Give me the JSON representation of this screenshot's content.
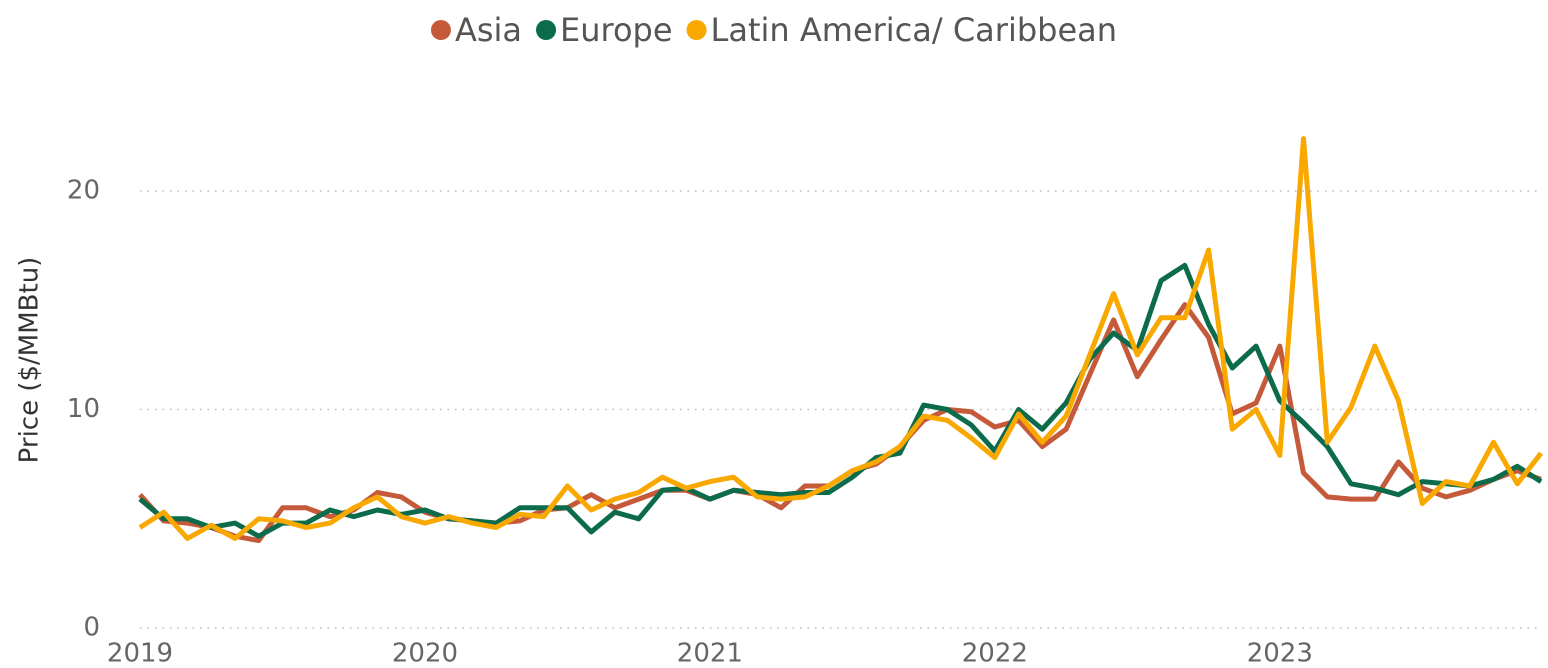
{
  "chart_data": {
    "type": "line",
    "y_label": "Price ($/MMBtu)",
    "x": [
      "2019-01",
      "2019-02",
      "2019-03",
      "2019-04",
      "2019-05",
      "2019-06",
      "2019-07",
      "2019-08",
      "2019-09",
      "2019-10",
      "2019-11",
      "2019-12",
      "2020-01",
      "2020-02",
      "2020-03",
      "2020-04",
      "2020-05",
      "2020-06",
      "2020-07",
      "2020-08",
      "2020-09",
      "2020-10",
      "2020-11",
      "2020-12",
      "2021-01",
      "2021-02",
      "2021-03",
      "2021-04",
      "2021-05",
      "2021-06",
      "2021-07",
      "2021-08",
      "2021-09",
      "2021-10",
      "2021-11",
      "2021-12",
      "2022-01",
      "2022-02",
      "2022-03",
      "2022-04",
      "2022-05",
      "2022-06",
      "2022-07",
      "2022-08",
      "2022-09",
      "2022-10",
      "2022-11",
      "2022-12",
      "2023-01",
      "2023-02",
      "2023-03",
      "2023-04",
      "2023-05",
      "2023-06",
      "2023-07",
      "2023-08",
      "2023-09",
      "2023-10",
      "2023-11",
      "2023-12"
    ],
    "series": [
      {
        "name": "Asia",
        "color": "#c55a3b",
        "values": [
          6.1,
          4.9,
          4.8,
          4.6,
          4.2,
          4.0,
          5.5,
          5.5,
          5.1,
          5.4,
          6.2,
          6.0,
          5.3,
          5.0,
          4.9,
          4.8,
          4.9,
          5.4,
          5.5,
          6.1,
          5.5,
          5.9,
          6.3,
          6.3,
          5.9,
          6.3,
          6.1,
          5.5,
          6.5,
          6.5,
          7.2,
          7.5,
          8.3,
          9.5,
          10.0,
          9.9,
          9.2,
          9.5,
          8.3,
          9.1,
          11.6,
          14.1,
          11.5,
          13.2,
          14.8,
          13.3,
          9.8,
          10.3,
          12.9,
          7.1,
          6.0,
          5.9,
          5.9,
          7.6,
          6.4,
          6.0,
          6.3,
          6.8,
          7.2,
          6.8
        ]
      },
      {
        "name": "Europe",
        "color": "#0b6b4b",
        "values": [
          5.9,
          5.0,
          5.0,
          4.6,
          4.8,
          4.2,
          4.8,
          4.8,
          5.4,
          5.1,
          5.4,
          5.2,
          5.4,
          5.0,
          4.9,
          4.8,
          5.5,
          5.5,
          5.5,
          4.4,
          5.3,
          5.0,
          6.3,
          6.4,
          5.9,
          6.3,
          6.2,
          6.1,
          6.2,
          6.2,
          6.9,
          7.8,
          8.0,
          10.2,
          10.0,
          9.3,
          8.1,
          10.0,
          9.1,
          10.3,
          12.3,
          13.5,
          12.7,
          15.9,
          16.6,
          13.9,
          11.9,
          12.9,
          10.4,
          9.4,
          8.3,
          6.6,
          6.4,
          6.1,
          6.7,
          6.6,
          6.5,
          6.8,
          7.4,
          6.7
        ]
      },
      {
        "name": "Latin America/ Caribbean",
        "color": "#f9a800",
        "values": [
          4.6,
          5.3,
          4.1,
          4.7,
          4.1,
          5.0,
          4.9,
          4.6,
          4.8,
          5.5,
          6.0,
          5.1,
          4.8,
          5.1,
          4.8,
          4.6,
          5.2,
          5.1,
          6.5,
          5.4,
          5.9,
          6.2,
          6.9,
          6.4,
          6.7,
          6.9,
          6.0,
          5.9,
          6.0,
          6.5,
          7.2,
          7.6,
          8.3,
          9.7,
          9.5,
          8.7,
          7.8,
          9.8,
          8.5,
          9.7,
          12.5,
          15.3,
          12.5,
          14.2,
          14.2,
          17.3,
          9.1,
          10.0,
          7.9,
          22.4,
          8.5,
          10.1,
          12.9,
          10.4,
          5.7,
          6.7,
          6.5,
          8.5,
          6.6,
          8.0
        ]
      }
    ],
    "xlim": [
      "2019-01",
      "2023-12"
    ],
    "xticks": [
      2019,
      2020,
      2021,
      2022,
      2023
    ],
    "ylim": [
      0,
      24
    ],
    "yticks": [
      0,
      10,
      20
    ],
    "grid": true,
    "legend": "top"
  }
}
